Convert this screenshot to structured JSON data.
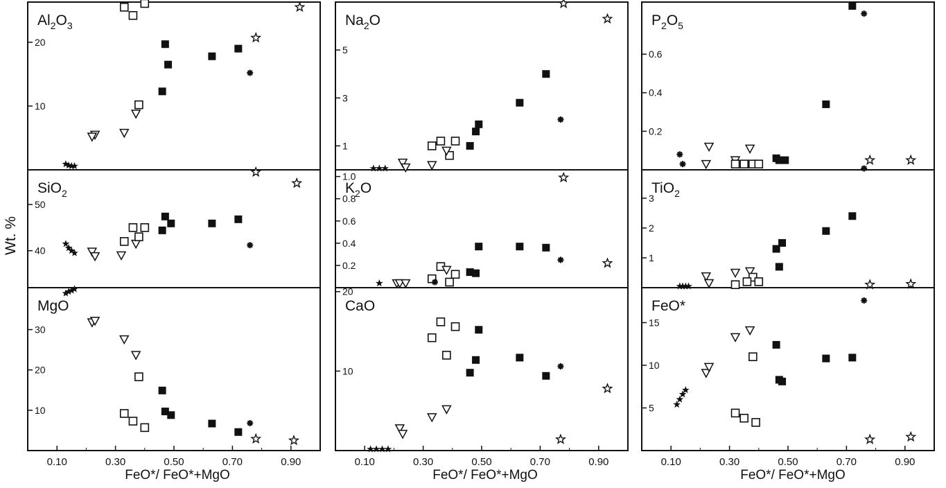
{
  "ylabel": "Wt. %",
  "xlabel": "FeO*/ FeO*+MgO",
  "x_ticks": [
    "0.10",
    "0.30",
    "0.50",
    "0.70",
    "0.90"
  ],
  "colors": {
    "ink": "#111111",
    "background": "#ffffff"
  },
  "legend": {
    "filled_square": "filled-square marker",
    "open_square": "open-square marker",
    "open_triangle": "open-down-triangle marker",
    "asterisk": "asterisk marker",
    "star": "open-star marker",
    "small_star": "small filled-star marker"
  },
  "chart_data": [
    {
      "panel": "Al2O3",
      "type": "scatter",
      "label": "Al",
      "label_sub1": "2",
      "label_mid": "O",
      "label_sub2": "3",
      "ylim": [
        0,
        26.3
      ],
      "ytick_values": [
        10,
        20
      ],
      "ytick_labels": [
        "10",
        "20"
      ],
      "points": [
        {
          "x": 0.33,
          "y": 25.5,
          "m": "open_square"
        },
        {
          "x": 0.36,
          "y": 24.2,
          "m": "open_square"
        },
        {
          "x": 0.4,
          "y": 27.0,
          "m": "open_square"
        },
        {
          "x": 0.47,
          "y": 19.7,
          "m": "filled_square"
        },
        {
          "x": 0.48,
          "y": 16.5,
          "m": "filled_square"
        },
        {
          "x": 0.46,
          "y": 12.3,
          "m": "filled_square"
        },
        {
          "x": 0.63,
          "y": 17.8,
          "m": "filled_square"
        },
        {
          "x": 0.72,
          "y": 19.0,
          "m": "filled_square"
        },
        {
          "x": 0.78,
          "y": 20.7,
          "m": "star"
        },
        {
          "x": 0.93,
          "y": 25.5,
          "m": "star"
        },
        {
          "x": 0.76,
          "y": 15.2,
          "m": "asterisk"
        },
        {
          "x": 0.38,
          "y": 10.2,
          "m": "open_square"
        },
        {
          "x": 0.37,
          "y": 8.8,
          "m": "open_triangle"
        },
        {
          "x": 0.33,
          "y": 5.8,
          "m": "open_triangle"
        },
        {
          "x": 0.23,
          "y": 5.5,
          "m": "open_triangle"
        },
        {
          "x": 0.22,
          "y": 5.2,
          "m": "open_triangle"
        },
        {
          "x": 0.13,
          "y": 0.9,
          "m": "small_star"
        },
        {
          "x": 0.14,
          "y": 0.7,
          "m": "small_star"
        },
        {
          "x": 0.15,
          "y": 0.6,
          "m": "small_star"
        },
        {
          "x": 0.16,
          "y": 0.6,
          "m": "small_star"
        }
      ]
    },
    {
      "panel": "Na2O",
      "type": "scatter",
      "label": "Na",
      "label_sub1": "2",
      "label_mid": "O",
      "label_sub2": "",
      "ylim": [
        0,
        7.0
      ],
      "ytick_values": [
        1,
        3,
        5
      ],
      "ytick_labels": [
        "1",
        "3",
        "5"
      ],
      "points": [
        {
          "x": 0.78,
          "y": 7.0,
          "m": "star"
        },
        {
          "x": 0.93,
          "y": 6.3,
          "m": "star"
        },
        {
          "x": 0.72,
          "y": 4.0,
          "m": "filled_square"
        },
        {
          "x": 0.63,
          "y": 2.8,
          "m": "filled_square"
        },
        {
          "x": 0.77,
          "y": 2.1,
          "m": "asterisk"
        },
        {
          "x": 0.49,
          "y": 1.9,
          "m": "filled_square"
        },
        {
          "x": 0.48,
          "y": 1.6,
          "m": "filled_square"
        },
        {
          "x": 0.46,
          "y": 1.0,
          "m": "filled_square"
        },
        {
          "x": 0.33,
          "y": 1.0,
          "m": "open_square"
        },
        {
          "x": 0.36,
          "y": 1.2,
          "m": "open_square"
        },
        {
          "x": 0.41,
          "y": 1.2,
          "m": "open_square"
        },
        {
          "x": 0.39,
          "y": 0.6,
          "m": "open_square"
        },
        {
          "x": 0.38,
          "y": 0.8,
          "m": "open_triangle"
        },
        {
          "x": 0.33,
          "y": 0.2,
          "m": "open_triangle"
        },
        {
          "x": 0.23,
          "y": 0.3,
          "m": "open_triangle"
        },
        {
          "x": 0.24,
          "y": 0.1,
          "m": "open_triangle"
        },
        {
          "x": 0.13,
          "y": 0.05,
          "m": "small_star"
        },
        {
          "x": 0.15,
          "y": 0.05,
          "m": "small_star"
        },
        {
          "x": 0.17,
          "y": 0.05,
          "m": "small_star"
        }
      ]
    },
    {
      "panel": "P2O5",
      "type": "scatter",
      "label": "P",
      "label_sub1": "2",
      "label_mid": "O",
      "label_sub2": "5",
      "ylim": [
        0,
        0.87
      ],
      "ytick_values": [
        0.2,
        0.4,
        0.6
      ],
      "ytick_labels": [
        "0.2",
        "0.4",
        "0.6"
      ],
      "points": [
        {
          "x": 0.72,
          "y": 0.85,
          "m": "filled_square"
        },
        {
          "x": 0.76,
          "y": 0.81,
          "m": "asterisk"
        },
        {
          "x": 0.63,
          "y": 0.34,
          "m": "filled_square"
        },
        {
          "x": 0.13,
          "y": 0.08,
          "m": "asterisk"
        },
        {
          "x": 0.14,
          "y": 0.03,
          "m": "asterisk"
        },
        {
          "x": 0.22,
          "y": 0.03,
          "m": "open_triangle"
        },
        {
          "x": 0.23,
          "y": 0.12,
          "m": "open_triangle"
        },
        {
          "x": 0.32,
          "y": 0.05,
          "m": "open_triangle"
        },
        {
          "x": 0.32,
          "y": 0.03,
          "m": "open_square"
        },
        {
          "x": 0.35,
          "y": 0.03,
          "m": "open_square"
        },
        {
          "x": 0.37,
          "y": 0.11,
          "m": "open_triangle"
        },
        {
          "x": 0.38,
          "y": 0.03,
          "m": "open_square"
        },
        {
          "x": 0.4,
          "y": 0.03,
          "m": "open_square"
        },
        {
          "x": 0.46,
          "y": 0.06,
          "m": "filled_square"
        },
        {
          "x": 0.47,
          "y": 0.05,
          "m": "filled_square"
        },
        {
          "x": 0.49,
          "y": 0.05,
          "m": "filled_square"
        },
        {
          "x": 0.78,
          "y": 0.05,
          "m": "star"
        },
        {
          "x": 0.92,
          "y": 0.05,
          "m": "star"
        },
        {
          "x": 0.76,
          "y": -0.02,
          "m": "asterisk"
        }
      ]
    },
    {
      "panel": "SiO2",
      "type": "scatter",
      "label": "SiO",
      "label_sub1": "2",
      "label_mid": "",
      "label_sub2": "",
      "ylim": [
        32,
        57.5
      ],
      "ytick_values": [
        40,
        50
      ],
      "ytick_labels": [
        "40",
        "50"
      ],
      "points": [
        {
          "x": 0.78,
          "y": 57.0,
          "m": "star"
        },
        {
          "x": 0.92,
          "y": 54.6,
          "m": "star"
        },
        {
          "x": 0.13,
          "y": 41.5,
          "m": "small_star"
        },
        {
          "x": 0.14,
          "y": 40.6,
          "m": "small_star"
        },
        {
          "x": 0.15,
          "y": 40.0,
          "m": "small_star"
        },
        {
          "x": 0.16,
          "y": 39.5,
          "m": "small_star"
        },
        {
          "x": 0.22,
          "y": 39.8,
          "m": "open_triangle"
        },
        {
          "x": 0.23,
          "y": 38.8,
          "m": "open_triangle"
        },
        {
          "x": 0.32,
          "y": 39.0,
          "m": "open_triangle"
        },
        {
          "x": 0.33,
          "y": 42.0,
          "m": "open_square"
        },
        {
          "x": 0.36,
          "y": 45.0,
          "m": "open_square"
        },
        {
          "x": 0.37,
          "y": 41.5,
          "m": "open_triangle"
        },
        {
          "x": 0.38,
          "y": 43.0,
          "m": "open_square"
        },
        {
          "x": 0.4,
          "y": 45.0,
          "m": "open_square"
        },
        {
          "x": 0.46,
          "y": 44.4,
          "m": "filled_square"
        },
        {
          "x": 0.47,
          "y": 47.4,
          "m": "filled_square"
        },
        {
          "x": 0.49,
          "y": 45.9,
          "m": "filled_square"
        },
        {
          "x": 0.63,
          "y": 45.9,
          "m": "filled_square"
        },
        {
          "x": 0.72,
          "y": 46.8,
          "m": "filled_square"
        },
        {
          "x": 0.76,
          "y": 41.2,
          "m": "asterisk"
        }
      ]
    },
    {
      "panel": "K2O",
      "type": "scatter",
      "label": "K",
      "label_sub1": "2",
      "label_mid": "O",
      "label_sub2": "",
      "ylim": [
        0,
        1.06
      ],
      "ytick_values": [
        0.2,
        0.4,
        0.6,
        0.8,
        1.0
      ],
      "ytick_labels": [
        "0.2",
        "0.4",
        "0.6",
        "0.8",
        "1.0"
      ],
      "points": [
        {
          "x": 0.78,
          "y": 0.99,
          "m": "star"
        },
        {
          "x": 0.93,
          "y": 0.22,
          "m": "star"
        },
        {
          "x": 0.77,
          "y": 0.25,
          "m": "asterisk"
        },
        {
          "x": 0.49,
          "y": 0.37,
          "m": "filled_square"
        },
        {
          "x": 0.63,
          "y": 0.37,
          "m": "filled_square"
        },
        {
          "x": 0.72,
          "y": 0.36,
          "m": "filled_square"
        },
        {
          "x": 0.46,
          "y": 0.14,
          "m": "filled_square"
        },
        {
          "x": 0.48,
          "y": 0.13,
          "m": "filled_square"
        },
        {
          "x": 0.36,
          "y": 0.19,
          "m": "open_square"
        },
        {
          "x": 0.38,
          "y": 0.16,
          "m": "open_triangle"
        },
        {
          "x": 0.41,
          "y": 0.12,
          "m": "open_square"
        },
        {
          "x": 0.33,
          "y": 0.08,
          "m": "open_square"
        },
        {
          "x": 0.39,
          "y": 0.05,
          "m": "open_square"
        },
        {
          "x": 0.34,
          "y": 0.05,
          "m": "asterisk"
        },
        {
          "x": 0.21,
          "y": 0.04,
          "m": "open_triangle"
        },
        {
          "x": 0.22,
          "y": 0.04,
          "m": "open_triangle"
        },
        {
          "x": 0.24,
          "y": 0.04,
          "m": "open_triangle"
        },
        {
          "x": 0.15,
          "y": 0.04,
          "m": "small_star"
        }
      ]
    },
    {
      "panel": "TiO2",
      "type": "scatter",
      "label": "TiO",
      "label_sub1": "2",
      "label_mid": "",
      "label_sub2": "",
      "ylim": [
        0,
        3.95
      ],
      "ytick_values": [
        1,
        2,
        3
      ],
      "ytick_labels": [
        "1",
        "2",
        "3"
      ],
      "points": [
        {
          "x": 0.72,
          "y": 2.4,
          "m": "filled_square"
        },
        {
          "x": 0.63,
          "y": 1.9,
          "m": "filled_square"
        },
        {
          "x": 0.48,
          "y": 1.5,
          "m": "filled_square"
        },
        {
          "x": 0.46,
          "y": 1.3,
          "m": "filled_square"
        },
        {
          "x": 0.47,
          "y": 0.7,
          "m": "filled_square"
        },
        {
          "x": 0.37,
          "y": 0.55,
          "m": "open_triangle"
        },
        {
          "x": 0.32,
          "y": 0.5,
          "m": "open_triangle"
        },
        {
          "x": 0.22,
          "y": 0.38,
          "m": "open_triangle"
        },
        {
          "x": 0.23,
          "y": 0.15,
          "m": "open_triangle"
        },
        {
          "x": 0.38,
          "y": 0.35,
          "m": "open_square"
        },
        {
          "x": 0.36,
          "y": 0.2,
          "m": "open_square"
        },
        {
          "x": 0.4,
          "y": 0.2,
          "m": "open_square"
        },
        {
          "x": 0.32,
          "y": 0.1,
          "m": "open_square"
        },
        {
          "x": 0.78,
          "y": 0.1,
          "m": "star"
        },
        {
          "x": 0.92,
          "y": 0.12,
          "m": "star"
        },
        {
          "x": 0.13,
          "y": 0.03,
          "m": "small_star"
        },
        {
          "x": 0.14,
          "y": 0.03,
          "m": "small_star"
        },
        {
          "x": 0.15,
          "y": 0.03,
          "m": "small_star"
        },
        {
          "x": 0.16,
          "y": 0.03,
          "m": "small_star"
        }
      ]
    },
    {
      "panel": "MgO",
      "type": "scatter",
      "label": "MgO",
      "label_sub1": "",
      "label_mid": "",
      "label_sub2": "",
      "ylim": [
        0,
        40.4
      ],
      "ytick_values": [
        10,
        20,
        30
      ],
      "ytick_labels": [
        "10",
        "20",
        "30"
      ],
      "points": [
        {
          "x": 0.13,
          "y": 39.0,
          "m": "small_star"
        },
        {
          "x": 0.14,
          "y": 39.4,
          "m": "small_star"
        },
        {
          "x": 0.15,
          "y": 39.7,
          "m": "small_star"
        },
        {
          "x": 0.16,
          "y": 40.2,
          "m": "small_star"
        },
        {
          "x": 0.22,
          "y": 31.8,
          "m": "open_triangle"
        },
        {
          "x": 0.23,
          "y": 32.2,
          "m": "open_triangle"
        },
        {
          "x": 0.33,
          "y": 27.6,
          "m": "open_triangle"
        },
        {
          "x": 0.37,
          "y": 23.7,
          "m": "open_triangle"
        },
        {
          "x": 0.38,
          "y": 18.3,
          "m": "open_square"
        },
        {
          "x": 0.46,
          "y": 14.9,
          "m": "filled_square"
        },
        {
          "x": 0.33,
          "y": 9.2,
          "m": "open_square"
        },
        {
          "x": 0.36,
          "y": 7.3,
          "m": "open_square"
        },
        {
          "x": 0.4,
          "y": 5.7,
          "m": "open_square"
        },
        {
          "x": 0.47,
          "y": 9.7,
          "m": "filled_square"
        },
        {
          "x": 0.49,
          "y": 8.8,
          "m": "filled_square"
        },
        {
          "x": 0.63,
          "y": 6.7,
          "m": "filled_square"
        },
        {
          "x": 0.72,
          "y": 4.6,
          "m": "filled_square"
        },
        {
          "x": 0.76,
          "y": 6.8,
          "m": "asterisk"
        },
        {
          "x": 0.78,
          "y": 2.9,
          "m": "star"
        },
        {
          "x": 0.91,
          "y": 2.5,
          "m": "star"
        }
      ]
    },
    {
      "panel": "CaO",
      "type": "scatter",
      "label": "CaO",
      "label_sub1": "",
      "label_mid": "",
      "label_sub2": "",
      "ylim": [
        0,
        20.5
      ],
      "ytick_values": [
        10,
        20
      ],
      "ytick_labels": [
        "10",
        "20"
      ],
      "points": [
        {
          "x": 0.36,
          "y": 16.2,
          "m": "open_square"
        },
        {
          "x": 0.41,
          "y": 15.6,
          "m": "open_square"
        },
        {
          "x": 0.33,
          "y": 14.2,
          "m": "open_square"
        },
        {
          "x": 0.49,
          "y": 15.2,
          "m": "filled_square"
        },
        {
          "x": 0.38,
          "y": 12.0,
          "m": "open_square"
        },
        {
          "x": 0.48,
          "y": 11.4,
          "m": "filled_square"
        },
        {
          "x": 0.46,
          "y": 9.8,
          "m": "filled_square"
        },
        {
          "x": 0.63,
          "y": 11.7,
          "m": "filled_square"
        },
        {
          "x": 0.72,
          "y": 9.4,
          "m": "filled_square"
        },
        {
          "x": 0.77,
          "y": 10.6,
          "m": "asterisk"
        },
        {
          "x": 0.93,
          "y": 7.8,
          "m": "star"
        },
        {
          "x": 0.38,
          "y": 5.2,
          "m": "open_triangle"
        },
        {
          "x": 0.33,
          "y": 4.2,
          "m": "open_triangle"
        },
        {
          "x": 0.22,
          "y": 2.8,
          "m": "open_triangle"
        },
        {
          "x": 0.23,
          "y": 2.1,
          "m": "open_triangle"
        },
        {
          "x": 0.77,
          "y": 1.4,
          "m": "star"
        },
        {
          "x": 0.12,
          "y": 0.1,
          "m": "small_star"
        },
        {
          "x": 0.14,
          "y": 0.1,
          "m": "small_star"
        },
        {
          "x": 0.16,
          "y": 0.1,
          "m": "small_star"
        },
        {
          "x": 0.18,
          "y": 0.1,
          "m": "small_star"
        }
      ]
    },
    {
      "panel": "FeO*",
      "type": "scatter",
      "label": "FeO*",
      "label_sub1": "",
      "label_mid": "",
      "label_sub2": "",
      "ylim": [
        0,
        19.1
      ],
      "ytick_values": [
        5,
        10,
        15
      ],
      "ytick_labels": [
        "5",
        "10",
        "15"
      ],
      "points": [
        {
          "x": 0.76,
          "y": 17.6,
          "m": "asterisk"
        },
        {
          "x": 0.32,
          "y": 13.3,
          "m": "open_triangle"
        },
        {
          "x": 0.37,
          "y": 14.1,
          "m": "open_triangle"
        },
        {
          "x": 0.46,
          "y": 12.4,
          "m": "filled_square"
        },
        {
          "x": 0.38,
          "y": 11.0,
          "m": "open_square"
        },
        {
          "x": 0.63,
          "y": 10.8,
          "m": "filled_square"
        },
        {
          "x": 0.72,
          "y": 10.9,
          "m": "filled_square"
        },
        {
          "x": 0.47,
          "y": 8.3,
          "m": "filled_square"
        },
        {
          "x": 0.48,
          "y": 8.1,
          "m": "filled_square"
        },
        {
          "x": 0.22,
          "y": 9.1,
          "m": "open_triangle"
        },
        {
          "x": 0.23,
          "y": 9.8,
          "m": "open_triangle"
        },
        {
          "x": 0.12,
          "y": 5.4,
          "m": "small_star"
        },
        {
          "x": 0.13,
          "y": 6.0,
          "m": "small_star"
        },
        {
          "x": 0.14,
          "y": 6.6,
          "m": "small_star"
        },
        {
          "x": 0.15,
          "y": 7.1,
          "m": "small_star"
        },
        {
          "x": 0.32,
          "y": 4.4,
          "m": "open_square"
        },
        {
          "x": 0.35,
          "y": 3.8,
          "m": "open_square"
        },
        {
          "x": 0.39,
          "y": 3.3,
          "m": "open_square"
        },
        {
          "x": 0.78,
          "y": 1.3,
          "m": "star"
        },
        {
          "x": 0.92,
          "y": 1.6,
          "m": "star"
        }
      ]
    }
  ]
}
